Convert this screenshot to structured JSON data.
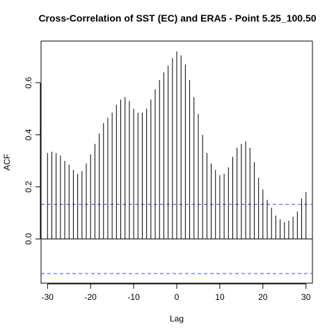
{
  "chart_data": {
    "type": "bar",
    "title": "Cross-Correlation of SST (EC) and ERA5 - Point 5.25_100.50",
    "xlabel": "Lag",
    "ylabel": "ACF",
    "xlim": [
      -31.5,
      31.5
    ],
    "ylim": [
      -0.17,
      0.76
    ],
    "xticks": [
      -30,
      -20,
      -10,
      0,
      10,
      20,
      30
    ],
    "xtick_labels": [
      "-30",
      "-20",
      "-10",
      "0",
      "10",
      "20",
      "30"
    ],
    "yticks": [
      0.0,
      0.2,
      0.4,
      0.6
    ],
    "ytick_labels": [
      "0.0",
      "0.2",
      "0.4",
      "0.6"
    ],
    "confidence_bound": 0.133,
    "confidence_color": "#4040ff",
    "bar_color": "#000000",
    "lags": [
      -30,
      -29,
      -28,
      -27,
      -26,
      -25,
      -24,
      -23,
      -22,
      -21,
      -20,
      -19,
      -18,
      -17,
      -16,
      -15,
      -14,
      -13,
      -12,
      -11,
      -10,
      -9,
      -8,
      -7,
      -6,
      -5,
      -4,
      -3,
      -2,
      -1,
      0,
      1,
      2,
      3,
      4,
      5,
      6,
      7,
      8,
      9,
      10,
      11,
      12,
      13,
      14,
      15,
      16,
      17,
      18,
      19,
      20,
      21,
      22,
      23,
      24,
      25,
      26,
      27,
      28,
      29,
      30
    ],
    "values": [
      0.33,
      0.335,
      0.33,
      0.32,
      0.3,
      0.285,
      0.265,
      0.25,
      0.26,
      0.29,
      0.325,
      0.365,
      0.405,
      0.445,
      0.465,
      0.485,
      0.515,
      0.535,
      0.545,
      0.53,
      0.5,
      0.485,
      0.485,
      0.5,
      0.535,
      0.575,
      0.61,
      0.64,
      0.665,
      0.695,
      0.72,
      0.705,
      0.67,
      0.61,
      0.545,
      0.48,
      0.4,
      0.33,
      0.29,
      0.265,
      0.245,
      0.25,
      0.275,
      0.315,
      0.35,
      0.365,
      0.375,
      0.35,
      0.295,
      0.235,
      0.19,
      0.15,
      0.12,
      0.09,
      0.075,
      0.065,
      0.07,
      0.085,
      0.105,
      0.155,
      0.18
    ]
  }
}
